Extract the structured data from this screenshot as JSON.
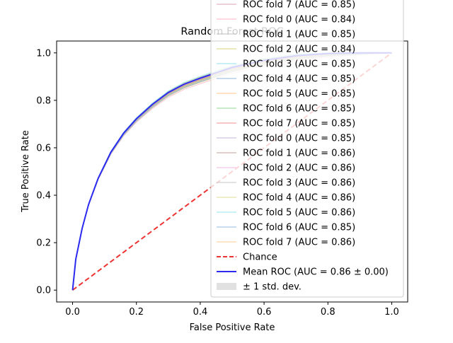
{
  "chart_data": {
    "type": "line",
    "title": "Random Forest ROC",
    "xlabel": "False Positive Rate",
    "ylabel": "True Positive Rate",
    "xlim": [
      -0.05,
      1.05
    ],
    "ylim": [
      -0.05,
      1.05
    ],
    "xticks": [
      "0.0",
      "0.2",
      "0.4",
      "0.6",
      "0.8",
      "1.0"
    ],
    "yticks": [
      "0.0",
      "0.2",
      "0.4",
      "0.6",
      "0.8",
      "1.0"
    ],
    "grid": false,
    "legend_position": "right, overflowing top",
    "roc_curve_shape": {
      "fpr": [
        0,
        0.01,
        0.03,
        0.05,
        0.08,
        0.12,
        0.16,
        0.2,
        0.25,
        0.3,
        0.35,
        0.4,
        0.5,
        0.6,
        0.7,
        0.8,
        0.9,
        1.0
      ],
      "tpr": [
        0,
        0.13,
        0.26,
        0.36,
        0.47,
        0.58,
        0.66,
        0.72,
        0.78,
        0.83,
        0.865,
        0.89,
        0.935,
        0.965,
        0.985,
        0.995,
        0.999,
        1.0
      ]
    },
    "series": [
      {
        "name": "ROC fold 7 (AUC = 0.85)",
        "color": "#d8a0b0",
        "auc": 0.85
      },
      {
        "name": "ROC fold 0 (AUC = 0.84)",
        "color": "#ffb3c6",
        "auc": 0.84
      },
      {
        "name": "ROC fold 1 (AUC = 0.85)",
        "color": "#bdbdbd",
        "auc": 0.85
      },
      {
        "name": "ROC fold 2 (AUC = 0.84)",
        "color": "#d4d27a",
        "auc": 0.84
      },
      {
        "name": "ROC fold 3 (AUC = 0.85)",
        "color": "#8fe0ec",
        "auc": 0.85
      },
      {
        "name": "ROC fold 4 (AUC = 0.85)",
        "color": "#8fb4dc",
        "auc": 0.85
      },
      {
        "name": "ROC fold 5 (AUC = 0.85)",
        "color": "#ffc48c",
        "auc": 0.85
      },
      {
        "name": "ROC fold 6 (AUC = 0.85)",
        "color": "#8fd68f",
        "auc": 0.85
      },
      {
        "name": "ROC fold 7 (AUC = 0.85)",
        "color": "#f08c8c",
        "auc": 0.85
      },
      {
        "name": "ROC fold 0 (AUC = 0.85)",
        "color": "#c4b3d8",
        "auc": 0.85
      },
      {
        "name": "ROC fold 1 (AUC = 0.86)",
        "color": "#c49e98",
        "auc": 0.86
      },
      {
        "name": "ROC fold 2 (AUC = 0.86)",
        "color": "#f3b8e2",
        "auc": 0.86
      },
      {
        "name": "ROC fold 3 (AUC = 0.86)",
        "color": "#c4c4c4",
        "auc": 0.86
      },
      {
        "name": "ROC fold 4 (AUC = 0.86)",
        "color": "#dede90",
        "auc": 0.86
      },
      {
        "name": "ROC fold 5 (AUC = 0.86)",
        "color": "#90e6ef",
        "auc": 0.86
      },
      {
        "name": "ROC fold 6 (AUC = 0.85)",
        "color": "#94b8e0",
        "auc": 0.85
      },
      {
        "name": "ROC fold 7 (AUC = 0.86)",
        "color": "#ffc894",
        "auc": 0.86
      }
    ],
    "chance": {
      "name": "Chance",
      "color": "#ee3333",
      "x": [
        0,
        1
      ],
      "y": [
        0,
        1
      ]
    },
    "mean": {
      "name": "Mean ROC (AUC = 0.86 ± 0.00)",
      "color": "#2b2bf0",
      "auc": 0.86
    },
    "std_band": {
      "name": "± 1 std. dev.",
      "color": "#bdbdbd"
    }
  }
}
